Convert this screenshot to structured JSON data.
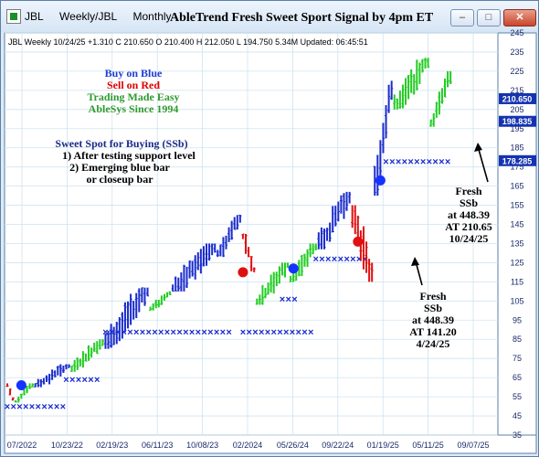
{
  "window": {
    "tabs": [
      "JBL",
      "Weekly/JBL",
      "Monthly"
    ],
    "title": "AbleTrend Fresh Sweet Sport Signal by 4pm ET",
    "controls": {
      "minimize": "–",
      "maximize": "□",
      "close": "✕"
    }
  },
  "chart_info": "JBL  Weekly 10/24/25 +1.310 C 210.650 O 210.400 H 212.050 L 194.750 5.34M Updated: 06:45:51",
  "legend_lines": [
    {
      "text": "Buy on Blue",
      "color": "#1f3fd0"
    },
    {
      "text": "Sell on Red",
      "color": "#e00000"
    },
    {
      "text": "Trading Made Easy",
      "color": "#2e9a2e"
    },
    {
      "text": "AbleSys Since 1994",
      "color": "#2e9a2e"
    }
  ],
  "sweet_spot": {
    "title": "Sweet Spot for Buying (SSb)",
    "lines": [
      "1) After testing support level",
      "2) Emerging blue bar",
      "or closeup bar"
    ],
    "color_title": "#1a2a8a",
    "color_lines": "#000000"
  },
  "chart_data": {
    "type": "bar",
    "title": "AbleTrend Fresh Sweet Sport Signal by 4pm ET",
    "ylim": [
      35,
      245
    ],
    "y_ticks": [
      35,
      45,
      55,
      65,
      75,
      85,
      95,
      105,
      115,
      125,
      135,
      145,
      155,
      165,
      175,
      185,
      195,
      205,
      215,
      225,
      235,
      245
    ],
    "x_tick_labels": [
      "07/2022",
      "10/23/22",
      "02/19/23",
      "06/11/23",
      "10/08/23",
      "02/2024",
      "05/26/24",
      "09/22/24",
      "01/19/25",
      "05/11/25",
      "09/07/25"
    ],
    "price_tags": [
      {
        "value": 210.65,
        "label": "210.650",
        "color": "#1533b0"
      },
      {
        "value": 198.835,
        "label": "198.835",
        "color": "#1533b0"
      },
      {
        "value": 178.285,
        "label": "178.285",
        "color": "#1533b0"
      }
    ],
    "bar_colors": {
      "up": "#1a2ccc",
      "down": "#e01010",
      "neutral": "#22cc22"
    },
    "week_index_range": [
      0,
      170
    ],
    "segments": [
      {
        "from": 0,
        "to": 2,
        "trend": "down",
        "range": [
          53,
          62
        ]
      },
      {
        "from": 3,
        "to": 9,
        "trend": "neutral",
        "range": [
          52,
          62
        ]
      },
      {
        "from": 10,
        "to": 22,
        "trend": "up",
        "range": [
          60,
          72
        ]
      },
      {
        "from": 23,
        "to": 34,
        "trend": "neutral",
        "range": [
          68,
          85
        ]
      },
      {
        "from": 35,
        "to": 50,
        "trend": "up",
        "range": [
          80,
          112
        ]
      },
      {
        "from": 51,
        "to": 58,
        "trend": "neutral",
        "range": [
          100,
          110
        ]
      },
      {
        "from": 59,
        "to": 74,
        "trend": "up",
        "range": [
          110,
          135
        ]
      },
      {
        "from": 75,
        "to": 83,
        "trend": "up",
        "range": [
          128,
          150
        ]
      },
      {
        "from": 84,
        "to": 88,
        "trend": "down",
        "range": [
          120,
          140
        ]
      },
      {
        "from": 89,
        "to": 100,
        "trend": "neutral",
        "range": [
          103,
          125
        ]
      },
      {
        "from": 101,
        "to": 110,
        "trend": "neutral",
        "range": [
          115,
          135
        ]
      },
      {
        "from": 111,
        "to": 122,
        "trend": "up",
        "range": [
          132,
          162
        ]
      },
      {
        "from": 123,
        "to": 130,
        "trend": "down",
        "range": [
          115,
          155
        ]
      },
      {
        "from": 131,
        "to": 137,
        "trend": "up",
        "range": [
          160,
          220
        ]
      },
      {
        "from": 138,
        "to": 150,
        "trend": "neutral",
        "range": [
          205,
          232
        ]
      },
      {
        "from": 151,
        "to": 158,
        "trend": "neutral",
        "range": [
          196,
          225
        ]
      }
    ],
    "support_x_marks": [
      {
        "from": 0,
        "to": 20,
        "value": 50
      },
      {
        "from": 21,
        "to": 32,
        "value": 64
      },
      {
        "from": 35,
        "to": 80,
        "value": 89
      },
      {
        "from": 84,
        "to": 110,
        "value": 89
      },
      {
        "from": 98,
        "to": 104,
        "value": 106
      },
      {
        "from": 110,
        "to": 128,
        "value": 127
      },
      {
        "from": 135,
        "to": 157,
        "value": 178
      }
    ],
    "ssb_markers": [
      {
        "week": 5,
        "value": 61,
        "color": "#1533ff"
      },
      {
        "week": 84,
        "value": 120,
        "color": "#e01010"
      },
      {
        "week": 102,
        "value": 122,
        "color": "#1533ff"
      },
      {
        "week": 125,
        "value": 136,
        "color": "#e01010"
      },
      {
        "week": 133,
        "value": 168,
        "color": "#1533ff"
      }
    ],
    "annotations": [
      {
        "lines": [
          "Fresh",
          "SSb",
          "at 448.39",
          "AT 210.65",
          "10/24/25"
        ],
        "value": 155
      },
      {
        "lines": [
          "Fresh",
          "SSb",
          "at 448.39",
          "AT 141.20",
          "4/24/25"
        ],
        "value": 100
      }
    ]
  }
}
